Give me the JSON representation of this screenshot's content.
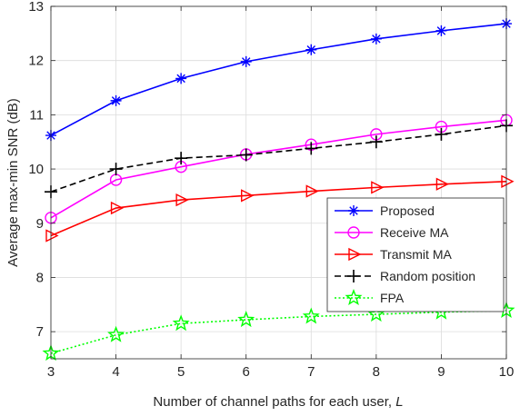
{
  "chart_data": {
    "type": "line",
    "title": "",
    "xlabel": "Number of channel paths for each user, ",
    "xlabel_var": "L",
    "ylabel": "Average max-min SNR (dB)",
    "x": [
      3,
      4,
      5,
      6,
      7,
      8,
      9,
      10
    ],
    "xlim": [
      3,
      10
    ],
    "ylim": [
      6.5,
      13
    ],
    "xticks": [
      "3",
      "4",
      "5",
      "6",
      "7",
      "8",
      "9",
      "10"
    ],
    "yticks": [
      7,
      8,
      9,
      10,
      11,
      12,
      13
    ],
    "ytick_labels": [
      "7",
      "8",
      "9",
      "10",
      "11",
      "12",
      "13"
    ],
    "grid": true,
    "legend_position": "lower-right",
    "series": [
      {
        "name": "Proposed",
        "values": [
          10.62,
          11.26,
          11.67,
          11.98,
          12.2,
          12.4,
          12.55,
          12.68
        ],
        "color": "#0000ff",
        "marker": "asterisk",
        "dash": "solid"
      },
      {
        "name": "Receive MA",
        "values": [
          9.1,
          9.8,
          10.04,
          10.27,
          10.45,
          10.64,
          10.78,
          10.9
        ],
        "color": "#ff00ff",
        "marker": "circle",
        "dash": "solid"
      },
      {
        "name": "Transmit MA",
        "values": [
          8.77,
          9.28,
          9.43,
          9.51,
          9.59,
          9.66,
          9.72,
          9.77
        ],
        "color": "#ff0000",
        "marker": "triangle-right",
        "dash": "solid"
      },
      {
        "name": "Random position",
        "values": [
          9.58,
          10.0,
          10.2,
          10.26,
          10.38,
          10.5,
          10.64,
          10.8
        ],
        "color": "#000000",
        "marker": "plus",
        "dash": "dashed"
      },
      {
        "name": "FPA",
        "values": [
          6.6,
          6.94,
          7.15,
          7.22,
          7.28,
          7.32,
          7.36,
          7.39
        ],
        "color": "#00ff00",
        "marker": "star",
        "dash": "dotted"
      }
    ]
  }
}
